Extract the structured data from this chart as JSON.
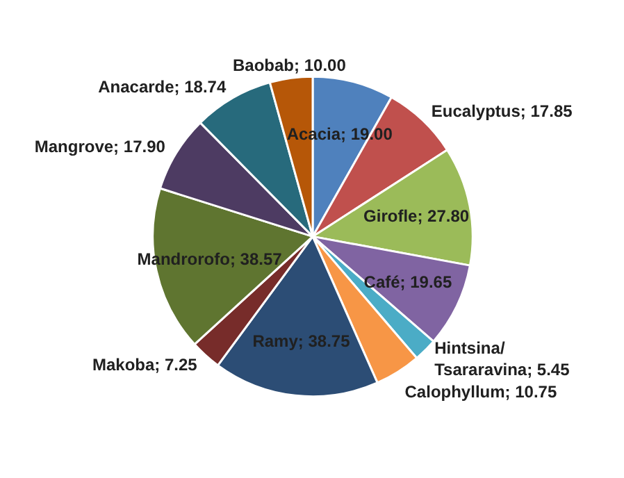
{
  "chart_data": {
    "type": "pie",
    "categories": [
      "Acacia",
      "Eucalyptus",
      "Girofle",
      "Café",
      "Hintsina/Tsararavina",
      "Calophyllum",
      "Ramy",
      "Makoba",
      "Mandrorofo",
      "Mangrove",
      "Anacarde",
      "Baobab"
    ],
    "values": [
      19.0,
      17.85,
      27.8,
      19.65,
      5.45,
      10.75,
      38.75,
      7.25,
      38.57,
      17.9,
      18.74,
      10.0
    ],
    "value_labels": [
      "19.00",
      "17.85",
      "27.80",
      "19.65",
      "5.45",
      "10.75",
      "38.75",
      "7.25",
      "38.57",
      "17.90",
      "18.74",
      "10.00"
    ],
    "colors": [
      "#4f81bd",
      "#c0504d",
      "#9bbb59",
      "#8064a2",
      "#4bacc6",
      "#f79646",
      "#2c4d75",
      "#772c2a",
      "#5f7530",
      "#4d3b62",
      "#276a7c",
      "#b65708"
    ]
  }
}
